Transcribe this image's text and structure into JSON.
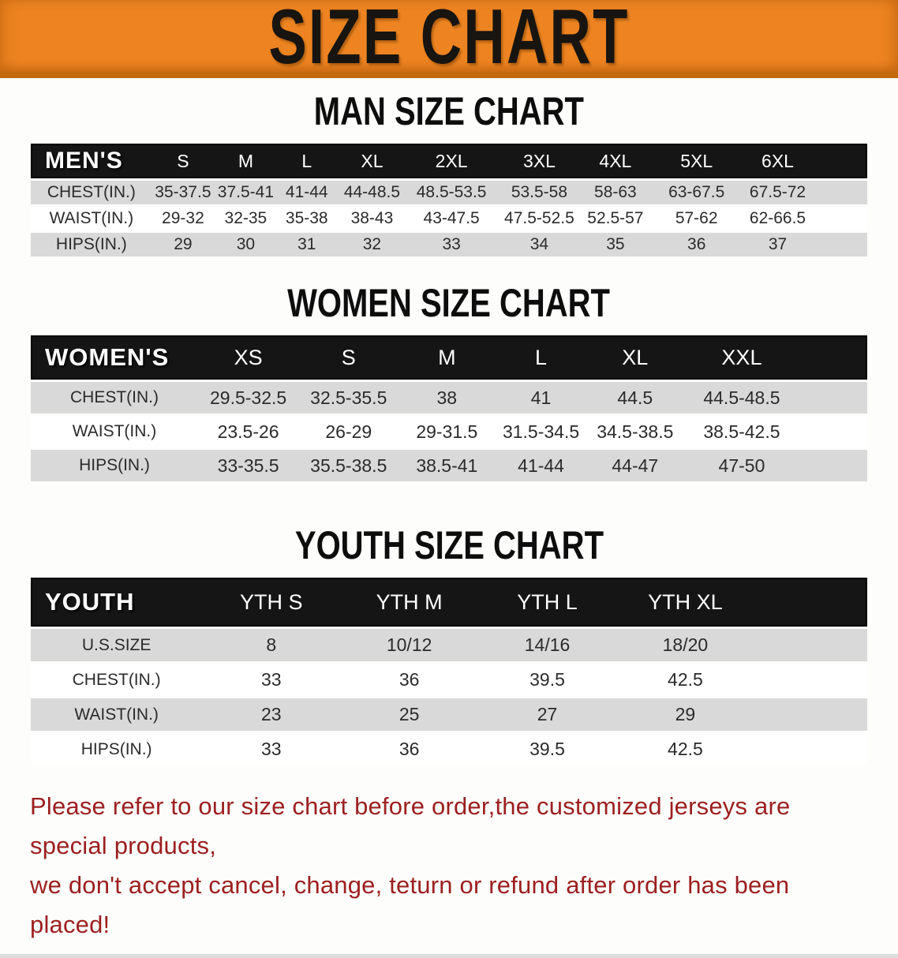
{
  "banner": {
    "title": "SIZE CHART"
  },
  "sections": {
    "man": {
      "heading": "MAN SIZE CHART"
    },
    "women": {
      "heading": "WOMEN SIZE CHART"
    },
    "youth": {
      "heading": "YOUTH SIZE CHART"
    }
  },
  "tables": {
    "men": {
      "header_label": "MEN'S",
      "columns": [
        "S",
        "M",
        "L",
        "XL",
        "2XL",
        "3XL",
        "4XL",
        "5XL",
        "6XL"
      ],
      "rows": [
        {
          "label": "CHEST(IN.)",
          "values": [
            "35-37.5",
            "37.5-41",
            "41-44",
            "44-48.5",
            "48.5-53.5",
            "53.5-58",
            "58-63",
            "63-67.5",
            "67.5-72"
          ]
        },
        {
          "label": "WAIST(IN.)",
          "values": [
            "29-32",
            "32-35",
            "35-38",
            "38-43",
            "43-47.5",
            "47.5-52.5",
            "52.5-57",
            "57-62",
            "62-66.5"
          ]
        },
        {
          "label": "HIPS(IN.)",
          "values": [
            "29",
            "30",
            "31",
            "32",
            "33",
            "34",
            "35",
            "36",
            "37"
          ]
        }
      ]
    },
    "women": {
      "header_label": "WOMEN'S",
      "columns": [
        "XS",
        "S",
        "M",
        "L",
        "XL",
        "XXL"
      ],
      "rows": [
        {
          "label": "CHEST(IN.)",
          "values": [
            "29.5-32.5",
            "32.5-35.5",
            "38",
            "41",
            "44.5",
            "44.5-48.5"
          ]
        },
        {
          "label": "WAIST(IN.)",
          "values": [
            "23.5-26",
            "26-29",
            "29-31.5",
            "31.5-34.5",
            "34.5-38.5",
            "38.5-42.5"
          ]
        },
        {
          "label": "HIPS(IN.)",
          "values": [
            "33-35.5",
            "35.5-38.5",
            "38.5-41",
            "41-44",
            "44-47",
            "47-50"
          ]
        }
      ]
    },
    "youth": {
      "header_label": "YOUTH",
      "columns": [
        "YTH S",
        "YTH M",
        "YTH L",
        "YTH XL"
      ],
      "rows": [
        {
          "label": "U.S.SIZE",
          "values": [
            "8",
            "10/12",
            "14/16",
            "18/20"
          ]
        },
        {
          "label": "CHEST(IN.)",
          "values": [
            "33",
            "36",
            "39.5",
            "42.5"
          ]
        },
        {
          "label": "WAIST(IN.)",
          "values": [
            "23",
            "25",
            "27",
            "29"
          ]
        },
        {
          "label": "HIPS(IN.)",
          "values": [
            "33",
            "36",
            "39.5",
            "42.5"
          ]
        }
      ]
    }
  },
  "footer": {
    "line1": "Please refer to our size chart before order,the customized jerseys are special products,",
    "line2": "we don't accept cancel, change, teturn or refund after order has been placed!"
  },
  "colors": {
    "banner_orange": "#ED8421",
    "banner_orange_dark": "#C2690F",
    "header_black": "#151515",
    "row_gray": "#D9D9D9",
    "row_white": "#FFFFFF",
    "disclaimer_red": "#9C1F1F"
  }
}
